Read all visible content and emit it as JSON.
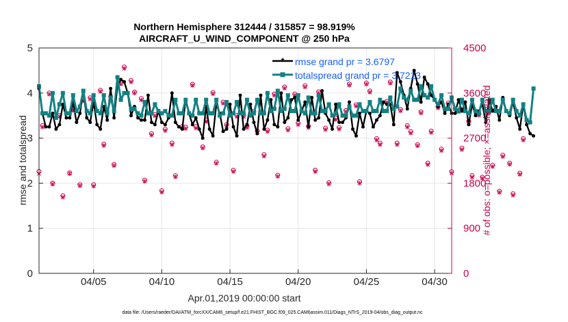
{
  "chart_data": {
    "type": "line",
    "title": "Northern Hemisphere 312444 / 315857 = 98.919%",
    "subtitle": "AIRCRAFT_U_WIND_COMPONENT @ 250 hPa",
    "xlabel": "Apr.01,2019 00:00:00 start",
    "ylabel_left": "rmse and totalspread",
    "ylabel_right": "# of obs: o=possible; ×=assimilated",
    "footnote": "data file: /Users/raeder/DAI/ATM_forcXX/CAM6_setup/f.e21.FHIST_BGC.f09_025.CAM6assim.011/Diags_NTrS_2019-04/obs_diag_output.nc",
    "xlim": [
      1,
      31.25
    ],
    "x_ticks": [
      5,
      10,
      15,
      20,
      25,
      30
    ],
    "x_tick_labels": [
      "04/05",
      "04/10",
      "04/15",
      "04/20",
      "04/25",
      "04/30"
    ],
    "ylim_left": [
      0,
      5
    ],
    "y_ticks_left": [
      0,
      1,
      2,
      3,
      4,
      5
    ],
    "ylim_right": [
      0,
      4500
    ],
    "y_ticks_right": [
      0,
      900,
      1800,
      2700,
      3600,
      4500
    ],
    "colors": {
      "rmse": "#000000",
      "spread": "#128183",
      "obs": "#c8004b",
      "legend_text": "#1560ff",
      "grid": "#e6e6e6"
    },
    "series": [
      {
        "name": "rmse grand pr = 3.6797",
        "axis": "left",
        "values": [
          4.1,
          3.55,
          3.25,
          3.25,
          3.55,
          3.2,
          3.3,
          3.75,
          3.45,
          3.45,
          3.8,
          3.35,
          3.55,
          4.05,
          3.45,
          3.35,
          3.8,
          3.3,
          3.2,
          3.7,
          3.4,
          4.1,
          3.45,
          4.15,
          4.3,
          4.25,
          4.0,
          3.5,
          3.7,
          3.45,
          3.4,
          3.4,
          3.95,
          3.35,
          3.3,
          3.6,
          3.35,
          3.3,
          3.45,
          4.0,
          3.35,
          3.25,
          3.2,
          3.85,
          3.55,
          3.3,
          3.45,
          3.2,
          3.0,
          3.7,
          3.2,
          3.05,
          3.75,
          3.55,
          3.15,
          3.2,
          3.75,
          3.25,
          3.05,
          3.95,
          3.2,
          3.3,
          3.75,
          3.35,
          3.1,
          3.95,
          3.2,
          3.4,
          3.85,
          3.3,
          3.25,
          4.0,
          3.35,
          3.45,
          3.85,
          3.9,
          3.4,
          3.6,
          3.8,
          3.25,
          3.9,
          3.4,
          3.45,
          4.05,
          3.55,
          3.4,
          3.2,
          3.75,
          3.35,
          3.35,
          3.45,
          3.8,
          3.2,
          3.05,
          3.55,
          3.25,
          3.6,
          3.55,
          3.25,
          3.4,
          3.5,
          3.8,
          3.75,
          3.75,
          3.3,
          4.45,
          4.25,
          3.95,
          3.65,
          4.1,
          4.5,
          4.2,
          3.8,
          4.35,
          4.2,
          3.95,
          3.85,
          3.7,
          3.8,
          3.55,
          3.75,
          3.55,
          3.55,
          3.85,
          3.6,
          3.8,
          3.3,
          3.75,
          3.5,
          3.6,
          3.75,
          3.35,
          3.85,
          3.6,
          3.7,
          3.4,
          3.9,
          3.6,
          3.5,
          3.8,
          3.45,
          3.2,
          3.75,
          3.3,
          3.1,
          3.05
        ]
      },
      {
        "name": "totalspread grand pr = 3.7213",
        "axis": "left",
        "values": [
          4.15,
          3.55,
          3.55,
          3.5,
          4.0,
          3.45,
          3.75,
          4.0,
          3.55,
          3.55,
          3.95,
          3.6,
          3.7,
          4.05,
          3.6,
          3.55,
          3.95,
          3.6,
          3.55,
          3.95,
          3.55,
          3.9,
          3.6,
          4.35,
          3.85,
          4.0,
          4.0,
          3.65,
          3.65,
          3.55,
          3.5,
          3.8,
          3.55,
          3.55,
          3.75,
          3.6,
          3.55,
          3.6,
          3.5,
          3.5,
          3.85,
          3.55,
          3.55,
          3.85,
          3.55,
          3.5,
          3.85,
          3.55,
          3.55,
          3.85,
          3.55,
          3.55,
          3.85,
          3.5,
          3.55,
          3.8,
          3.5,
          3.55,
          3.8,
          3.55,
          3.55,
          3.85,
          3.5,
          3.55,
          3.85,
          3.55,
          3.55,
          4.0,
          3.6,
          3.65,
          4.05,
          3.6,
          3.65,
          3.95,
          3.6,
          3.6,
          3.95,
          3.6,
          3.55,
          3.9,
          3.55,
          3.55,
          3.95,
          3.6,
          3.6,
          3.75,
          3.5,
          3.55,
          3.75,
          3.5,
          3.5,
          3.7,
          3.5,
          3.5,
          3.75,
          3.6,
          3.6,
          3.8,
          3.6,
          3.6,
          3.85,
          3.6,
          3.6,
          3.9,
          3.65,
          3.7,
          4.1,
          3.9,
          3.85,
          4.05,
          3.85,
          3.85,
          4.15,
          3.95,
          3.9,
          4.15,
          3.85,
          3.75,
          3.95,
          3.65,
          3.65,
          3.9,
          3.65,
          3.6,
          3.85,
          3.6,
          3.55,
          3.85,
          3.6,
          3.55,
          3.85,
          3.6,
          3.6,
          3.85,
          3.6,
          3.6,
          3.85,
          3.6,
          3.55,
          3.85,
          3.6,
          3.5,
          3.75,
          3.4,
          3.35,
          4.1
        ]
      },
      {
        "name": "# of obs possible",
        "axis": "right",
        "marker": "o",
        "values": [
          2035,
          2950,
          1570,
          3600,
          1800,
          3750,
          3150,
          1550,
          2910,
          2005,
          3270,
          2910,
          1770,
          3470,
          2920,
          3505,
          1770,
          2220,
          3655,
          2580,
          2000,
          3530,
          2175,
          3420,
          3800,
          4120,
          2740,
          3850,
          3620,
          1890,
          3490,
          1860,
          3600,
          2790,
          3170,
          2000,
          1650,
          2880,
          3150,
          2600,
          1950,
          3625,
          2930,
          2920,
          2060,
          3775,
          2930,
          2860,
          2525,
          3060,
          2620,
          3610,
          2220,
          1995,
          3420,
          2970,
          2985,
          2060,
          3155,
          3820,
          3150,
          2940,
          2070,
          3230,
          2840,
          3500,
          2370,
          2860,
          2925,
          3580,
          1960,
          3495,
          3720,
          2890,
          2360,
          3580,
          3000,
          1955,
          3745,
          2940,
          2875,
          2060,
          3625,
          2880,
          2900,
          1810,
          3685,
          3100,
          2910,
          2440,
          3250,
          3780,
          2890,
          3365,
          1830,
          3790,
          3800,
          3640,
          3545,
          2690,
          2600,
          2690,
          3435,
          3820,
          1760,
          2600,
          3270,
          2000,
          2950,
          2830,
          3460,
          2570,
          3225,
          3470,
          2200,
          2840,
          3325,
          3325,
          2480,
          3515,
          3400,
          2030,
          2730,
          3250,
          2500,
          3360,
          3035,
          1950,
          2670,
          3180,
          1920,
          3280,
          3230,
          2160,
          2870,
          1640,
          2360,
          3070,
          2200,
          1590,
          2840,
          2000,
          2690
        ]
      },
      {
        "name": "# of obs assimilated",
        "axis": "right",
        "marker": "x",
        "values": [
          1990,
          2920,
          1550,
          3575,
          1780,
          3720,
          3130,
          1520,
          2880,
          1990,
          3250,
          2880,
          1750,
          3440,
          2890,
          3480,
          1740,
          2195,
          3630,
          2550,
          1980,
          3500,
          2150,
          3395,
          3780,
          4090,
          2710,
          3820,
          3600,
          1865,
          3460,
          1835,
          3575,
          2760,
          3145,
          1970,
          1620,
          2850,
          3120,
          2570,
          1925,
          3600,
          2900,
          2890,
          2030,
          3750,
          2900,
          2835,
          2500,
          3030,
          2590,
          3585,
          2195,
          1970,
          3395,
          2940,
          2955,
          2030,
          3130,
          3795,
          3125,
          2910,
          2040,
          3205,
          2810,
          3475,
          2340,
          2830,
          2895,
          3555,
          1935,
          3470,
          3695,
          2860,
          2330,
          3555,
          2970,
          1930,
          3720,
          2910,
          2845,
          2030,
          3600,
          2850,
          2870,
          1785,
          3660,
          3070,
          2880,
          2410,
          3225,
          3755,
          2860,
          3340,
          1800,
          3765,
          3775,
          3615,
          3520,
          2660,
          2570,
          2660,
          3410,
          3795,
          1730,
          2570,
          3245,
          1975,
          2920,
          2800,
          3435,
          2545,
          3200,
          3445,
          2170,
          2810,
          3300,
          3300,
          2450,
          3490,
          3375,
          2000,
          2700,
          3225,
          2470,
          3335,
          3010,
          1920,
          2640,
          3155,
          1895,
          3255,
          3205,
          2130,
          2840,
          1615,
          2330,
          3045,
          2175,
          1560,
          2810,
          1975,
          2660
        ]
      }
    ],
    "legend": {
      "position": "top-right",
      "items": [
        "rmse grand pr = 3.6797",
        "totalspread grand pr = 3.7213"
      ]
    }
  }
}
